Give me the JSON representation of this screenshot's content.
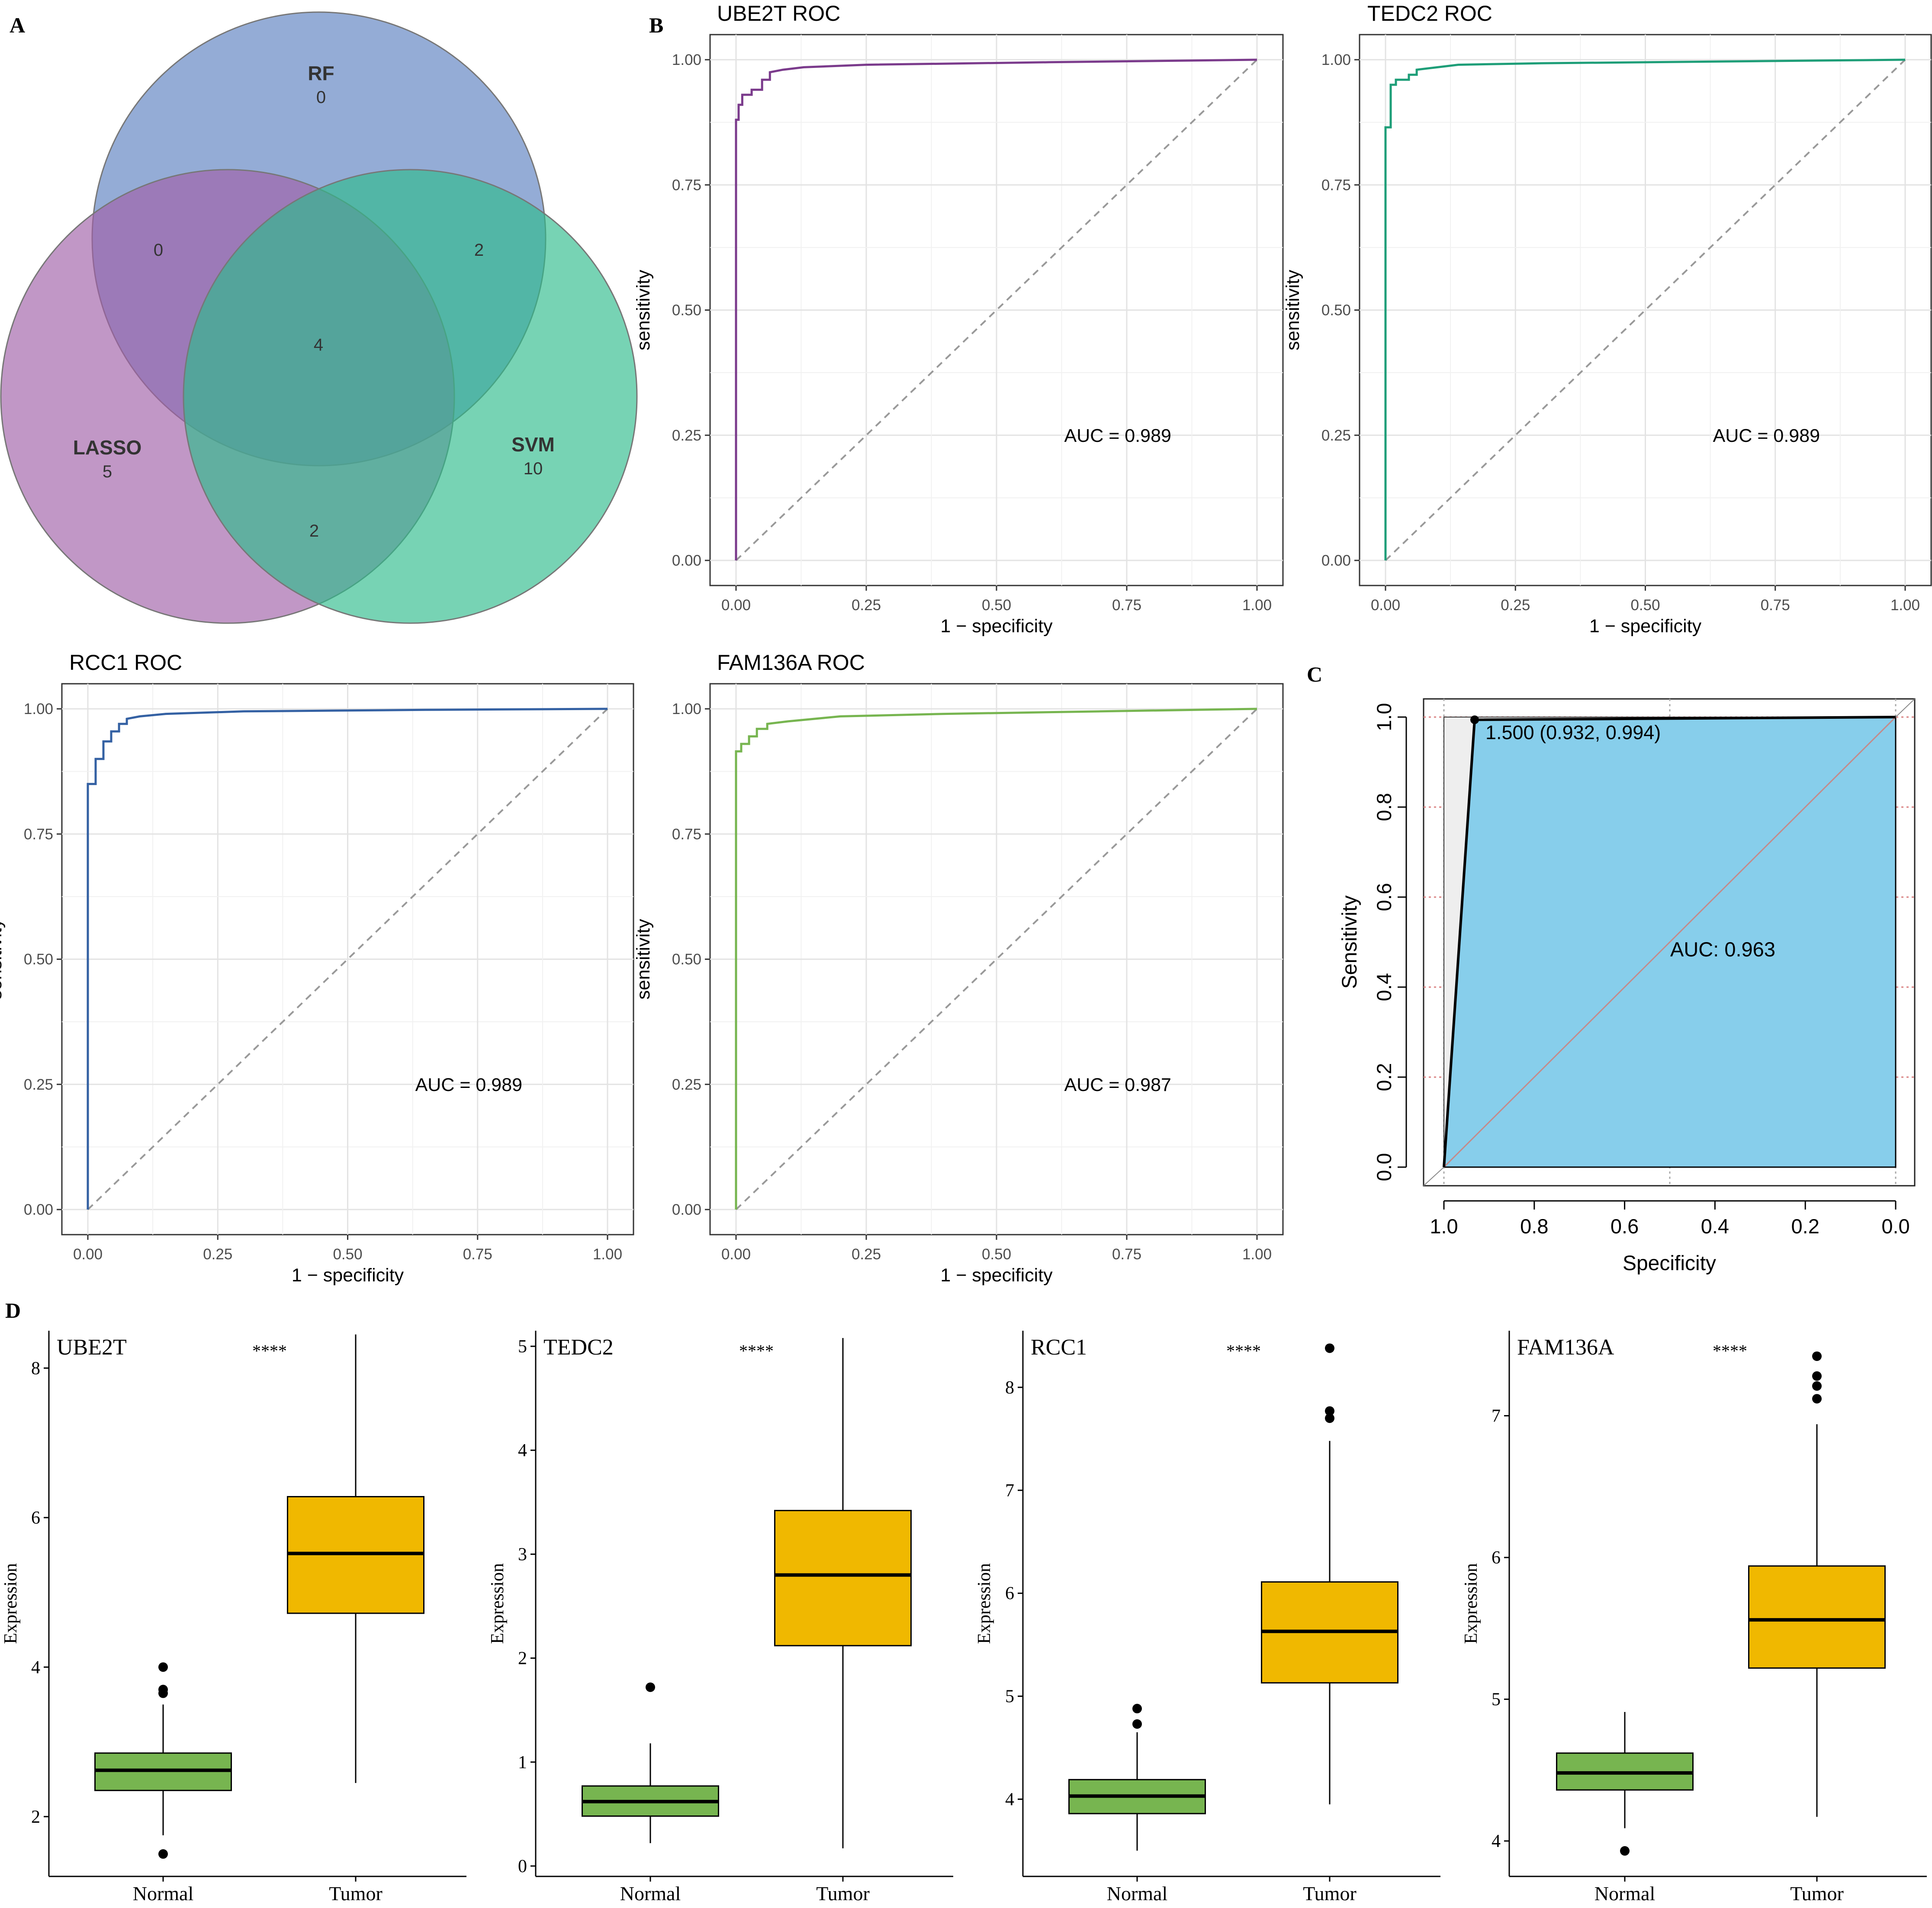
{
  "colors": {
    "rf": "#5b80c0",
    "lasso": "#a060a8",
    "svm": "#2ebc8c",
    "ube2t": "#7b3b8c",
    "tedc2": "#1e9e78",
    "rcc1": "#3461a3",
    "fam136a": "#77b550",
    "roc_fill": "#87ceeb",
    "normal_box": "#77b550",
    "tumor_box": "#f0b800",
    "diag": "#999999",
    "grid": "#e6e6e6"
  },
  "panel_labels": {
    "a": "A",
    "b": "B",
    "c": "C",
    "d": "D"
  },
  "venn": {
    "sets": [
      {
        "key": "rf",
        "label": "RF",
        "count": "0"
      },
      {
        "key": "lasso",
        "label": "LASSO",
        "count": "5"
      },
      {
        "key": "svm",
        "label": "SVM",
        "count": "10"
      }
    ],
    "intersections": {
      "rf_lasso": "0",
      "rf_svm": "2",
      "lasso_svm": "2",
      "all": "4"
    }
  },
  "roc_axes": {
    "ylabel": "sensitivity",
    "xlabel": "1 − specificity",
    "ticks": [
      "0.00",
      "0.25",
      "0.50",
      "0.75",
      "1.00"
    ],
    "auc_prefix": "AUC =  "
  },
  "chart_data": [
    {
      "type": "line",
      "title": "UBE2T ROC",
      "color_key": "ube2t",
      "auc": "0.989",
      "xlabel": "1 − specificity",
      "ylabel": "sensitivity",
      "xlim": [
        0,
        1
      ],
      "ylim": [
        0,
        1
      ],
      "x": [
        0,
        0,
        0.005,
        0.005,
        0.012,
        0.012,
        0.03,
        0.03,
        0.05,
        0.05,
        0.065,
        0.065,
        0.09,
        0.13,
        0.25,
        0.6,
        1.0
      ],
      "y": [
        0,
        0.88,
        0.88,
        0.91,
        0.91,
        0.93,
        0.93,
        0.94,
        0.94,
        0.96,
        0.96,
        0.975,
        0.98,
        0.985,
        0.99,
        0.995,
        1.0
      ]
    },
    {
      "type": "line",
      "title": "TEDC2 ROC",
      "color_key": "tedc2",
      "auc": "0.989",
      "xlabel": "1 − specificity",
      "ylabel": "sensitivity",
      "xlim": [
        0,
        1
      ],
      "ylim": [
        0,
        1
      ],
      "x": [
        0,
        0,
        0.01,
        0.01,
        0.02,
        0.02,
        0.045,
        0.045,
        0.06,
        0.06,
        0.1,
        0.14,
        0.3,
        0.7,
        1.0
      ],
      "y": [
        0,
        0.865,
        0.865,
        0.95,
        0.95,
        0.96,
        0.96,
        0.97,
        0.97,
        0.98,
        0.985,
        0.99,
        0.993,
        0.997,
        1.0
      ]
    },
    {
      "type": "line",
      "title": "RCC1 ROC",
      "color_key": "rcc1",
      "auc": "0.989",
      "xlabel": "1 − specificity",
      "ylabel": "sensitivity",
      "xlim": [
        0,
        1
      ],
      "ylim": [
        0,
        1
      ],
      "x": [
        0,
        0,
        0.015,
        0.015,
        0.03,
        0.03,
        0.045,
        0.045,
        0.06,
        0.06,
        0.075,
        0.075,
        0.1,
        0.15,
        0.3,
        0.65,
        1.0
      ],
      "y": [
        0,
        0.85,
        0.85,
        0.9,
        0.9,
        0.935,
        0.935,
        0.955,
        0.955,
        0.97,
        0.97,
        0.98,
        0.985,
        0.99,
        0.995,
        0.998,
        1.0
      ]
    },
    {
      "type": "line",
      "title": "FAM136A ROC",
      "color_key": "fam136a",
      "auc": "0.987",
      "xlabel": "1 − specificity",
      "ylabel": "sensitivity",
      "xlim": [
        0,
        1
      ],
      "ylim": [
        0,
        1
      ],
      "x": [
        0,
        0,
        0.01,
        0.01,
        0.025,
        0.025,
        0.04,
        0.04,
        0.06,
        0.06,
        0.1,
        0.2,
        0.4,
        0.7,
        1.0
      ],
      "y": [
        0,
        0.915,
        0.915,
        0.93,
        0.93,
        0.945,
        0.945,
        0.96,
        0.96,
        0.97,
        0.975,
        0.985,
        0.99,
        0.995,
        1.0
      ]
    },
    {
      "type": "area",
      "title": "",
      "xlabel": "Specificity",
      "ylabel": "Sensitivity",
      "auc_text": "AUC: 0.963",
      "threshold_label": "1.500 (0.932, 0.994)",
      "threshold_point": {
        "specificity": 0.932,
        "sensitivity": 0.994
      },
      "xlim": [
        1.0,
        0.0
      ],
      "ylim": [
        0.0,
        1.0
      ],
      "xticks": [
        "1.0",
        "0.8",
        "0.6",
        "0.4",
        "0.2",
        "0.0"
      ],
      "yticks": [
        "0.0",
        "0.2",
        "0.4",
        "0.6",
        "0.8",
        "1.0"
      ],
      "specificity": [
        1.0,
        0.932,
        0.0
      ],
      "sensitivity": [
        0.0,
        0.994,
        1.0
      ]
    },
    {
      "type": "box",
      "title": "UBE2T",
      "significance": "****",
      "ylabel": "Expression",
      "categories": [
        "Normal",
        "Tumor"
      ],
      "ylim": [
        1.2,
        8.5
      ],
      "yticks": [
        "2",
        "4",
        "6",
        "8"
      ],
      "boxes": [
        {
          "min": 1.75,
          "q1": 2.35,
          "median": 2.62,
          "q3": 2.85,
          "max": 3.5,
          "outliers": [
            1.5,
            3.65,
            3.7,
            4.0
          ]
        },
        {
          "min": 2.45,
          "q1": 4.72,
          "median": 5.52,
          "q3": 6.28,
          "max": 8.45,
          "outliers": []
        }
      ]
    },
    {
      "type": "box",
      "title": "TEDC2",
      "significance": "****",
      "ylabel": "Expression",
      "categories": [
        "Normal",
        "Tumor"
      ],
      "ylim": [
        -0.1,
        5.15
      ],
      "yticks": [
        "0",
        "1",
        "2",
        "3",
        "4",
        "5"
      ],
      "boxes": [
        {
          "min": 0.22,
          "q1": 0.48,
          "median": 0.62,
          "q3": 0.77,
          "max": 1.18,
          "outliers": [
            1.72
          ]
        },
        {
          "min": 0.17,
          "q1": 2.12,
          "median": 2.8,
          "q3": 3.42,
          "max": 5.08,
          "outliers": []
        }
      ]
    },
    {
      "type": "box",
      "title": "RCC1",
      "significance": "****",
      "ylabel": "Expression",
      "categories": [
        "Normal",
        "Tumor"
      ],
      "ylim": [
        3.25,
        8.55
      ],
      "yticks": [
        "4",
        "5",
        "6",
        "7",
        "8"
      ],
      "boxes": [
        {
          "min": 3.5,
          "q1": 3.86,
          "median": 4.03,
          "q3": 4.19,
          "max": 4.65,
          "outliers": [
            4.73,
            4.88
          ]
        },
        {
          "min": 3.95,
          "q1": 5.13,
          "median": 5.63,
          "q3": 6.11,
          "max": 7.48,
          "outliers": [
            7.7,
            7.77,
            8.38
          ]
        }
      ]
    },
    {
      "type": "box",
      "title": "FAM136A",
      "significance": "****",
      "ylabel": "Expression",
      "categories": [
        "Normal",
        "Tumor"
      ],
      "ylim": [
        3.75,
        7.6
      ],
      "yticks": [
        "4",
        "5",
        "6",
        "7"
      ],
      "boxes": [
        {
          "min": 4.09,
          "q1": 4.36,
          "median": 4.48,
          "q3": 4.62,
          "max": 4.91,
          "outliers": [
            3.93
          ]
        },
        {
          "min": 4.17,
          "q1": 5.22,
          "median": 5.56,
          "q3": 5.94,
          "max": 6.94,
          "outliers": [
            7.12,
            7.21,
            7.28,
            7.42
          ]
        }
      ]
    }
  ]
}
